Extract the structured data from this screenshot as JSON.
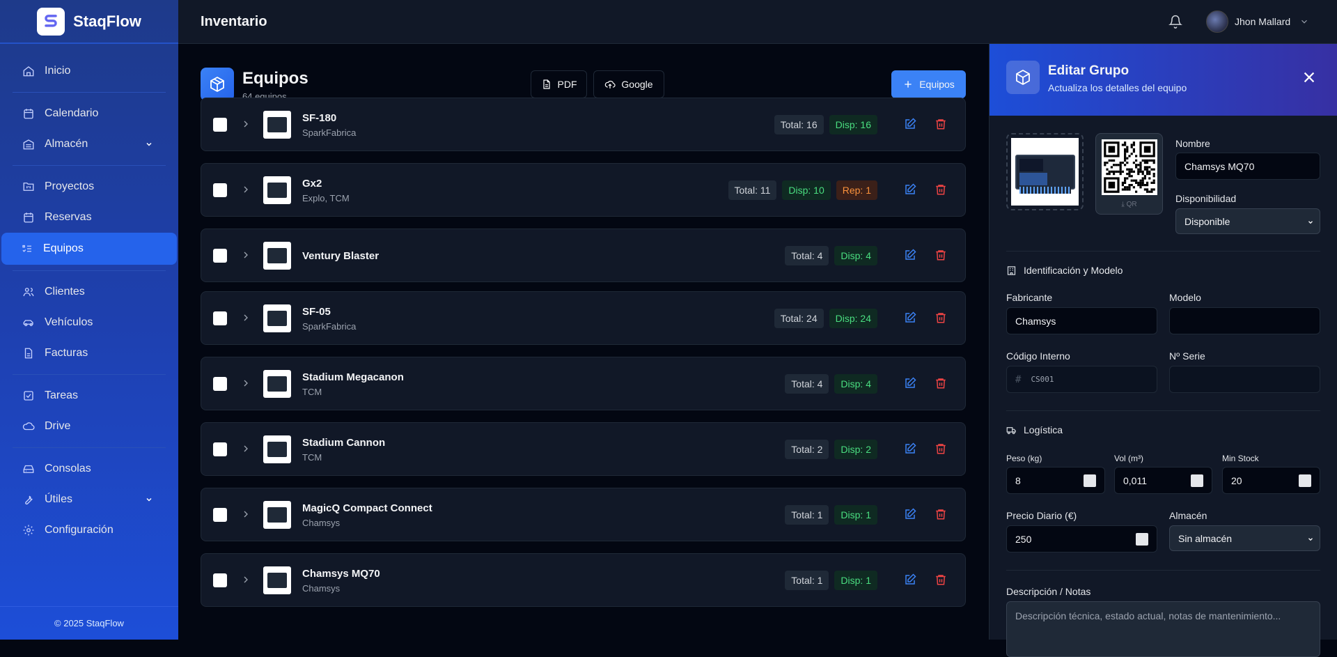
{
  "app": {
    "name": "StaqFlow",
    "footer": "© 2025 StaqFlow"
  },
  "sidebar": {
    "items": [
      {
        "label": "Inicio",
        "icon": "home-icon"
      },
      {
        "label": "Calendario",
        "icon": "calendar-icon"
      },
      {
        "label": "Almacén",
        "icon": "warehouse-icon",
        "expandable": true
      },
      {
        "label": "Proyectos",
        "icon": "folder-icon"
      },
      {
        "label": "Reservas",
        "icon": "calendar-icon"
      },
      {
        "label": "Equipos",
        "icon": "list-check-icon",
        "active": true
      },
      {
        "label": "Clientes",
        "icon": "users-icon"
      },
      {
        "label": "Vehículos",
        "icon": "car-icon"
      },
      {
        "label": "Facturas",
        "icon": "file-icon"
      },
      {
        "label": "Tareas",
        "icon": "checkbox-icon"
      },
      {
        "label": "Drive",
        "icon": "cloud-icon"
      },
      {
        "label": "Consolas",
        "icon": "hard-drive-icon"
      },
      {
        "label": "Útiles",
        "icon": "wrench-icon",
        "expandable": true
      },
      {
        "label": "Configuración",
        "icon": "gear-icon"
      }
    ]
  },
  "header": {
    "title": "Inventario",
    "user": "Jhon Mallard"
  },
  "page": {
    "title": "Equipos",
    "subtitle": "64 equipos",
    "pdf": "PDF",
    "google": "Google",
    "add": "Equipos"
  },
  "items": [
    {
      "name": "SF-180",
      "sub": "SparkFabrica",
      "total": "Total: 16",
      "disp": "Disp: 16"
    },
    {
      "name": "Gx2",
      "sub": "Explo, TCM",
      "total": "Total: 11",
      "disp": "Disp: 10",
      "rep": "Rep: 1"
    },
    {
      "name": "Ventury Blaster",
      "sub": "",
      "total": "Total: 4",
      "disp": "Disp: 4"
    },
    {
      "name": "SF-05",
      "sub": "SparkFabrica",
      "total": "Total: 24",
      "disp": "Disp: 24"
    },
    {
      "name": "Stadium Megacanon",
      "sub": "TCM",
      "total": "Total: 4",
      "disp": "Disp: 4"
    },
    {
      "name": "Stadium Cannon",
      "sub": "TCM",
      "total": "Total: 2",
      "disp": "Disp: 2"
    },
    {
      "name": "MagicQ Compact Connect",
      "sub": "Chamsys",
      "total": "Total: 1",
      "disp": "Disp: 1"
    },
    {
      "name": "Chamsys MQ70",
      "sub": "Chamsys",
      "total": "Total: 1",
      "disp": "Disp: 1"
    }
  ],
  "panel": {
    "title": "Editar Grupo",
    "subtitle": "Actualiza los detalles del equipo",
    "qr_label": "QR",
    "nombre_label": "Nombre",
    "nombre": "Chamsys MQ70",
    "disp_label": "Disponibilidad",
    "disp": "Disponible",
    "sec_id": "Identificación y Modelo",
    "fabricante_label": "Fabricante",
    "fabricante": "Chamsys",
    "modelo_label": "Modelo",
    "modelo": "",
    "codigo_label": "Código Interno",
    "codigo": "CS001",
    "serie_label": "Nº Serie",
    "serie": "",
    "sec_log": "Logística",
    "peso_label": "Peso (kg)",
    "peso": "8",
    "vol_label": "Vol (m³)",
    "vol": "0,011",
    "min_label": "Min Stock",
    "min": "20",
    "precio_label": "Precio Diario (€)",
    "precio": "250",
    "almacen_label": "Almacén",
    "almacen": "Sin almacén",
    "desc_label": "Descripción / Notas",
    "desc_placeholder": "Descripción técnica, estado actual, notas de mantenimiento..."
  },
  "colors": {
    "accent": "#3b82f6",
    "disp": "#4ade80",
    "rep": "#fb923c",
    "delete": "#ef4444"
  }
}
